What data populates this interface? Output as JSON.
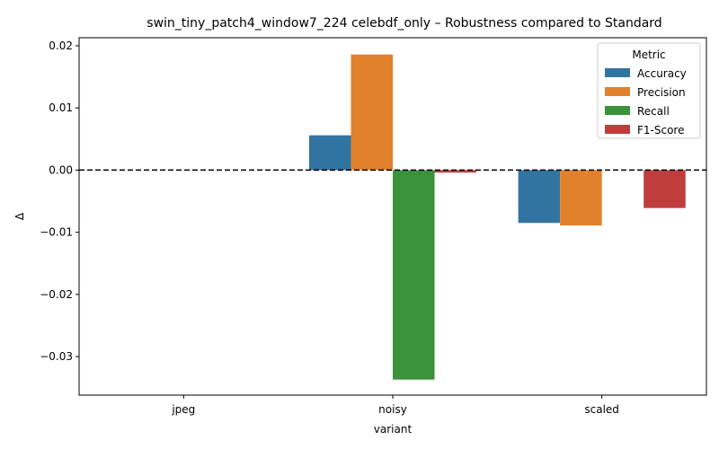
{
  "chart_data": {
    "type": "bar",
    "title": "swin_tiny_patch4_window7_224 celebdf_only – Robustness compared to Standard",
    "xlabel": "variant",
    "ylabel": "Δ",
    "categories": [
      "jpeg",
      "noisy",
      "scaled"
    ],
    "ylim": [
      -0.0362,
      0.0213
    ],
    "yticks": [
      -0.03,
      -0.02,
      -0.01,
      0.0,
      0.01,
      0.02
    ],
    "ytick_labels": [
      "−0.03",
      "−0.02",
      "−0.01",
      "0.00",
      "0.01",
      "0.02"
    ],
    "reference_line": 0,
    "legend": {
      "title": "Metric",
      "placement": "top-right"
    },
    "series": [
      {
        "name": "Accuracy",
        "color": "#3274a1",
        "values": [
          0,
          0.0056,
          -0.0085
        ]
      },
      {
        "name": "Precision",
        "color": "#e1812c",
        "values": [
          0,
          0.0186,
          -0.0089
        ]
      },
      {
        "name": "Recall",
        "color": "#3a923a",
        "values": [
          0,
          -0.0337,
          0
        ]
      },
      {
        "name": "F1-Score",
        "color": "#c03d3e",
        "values": [
          0,
          -0.0004,
          -0.0061
        ]
      }
    ]
  }
}
